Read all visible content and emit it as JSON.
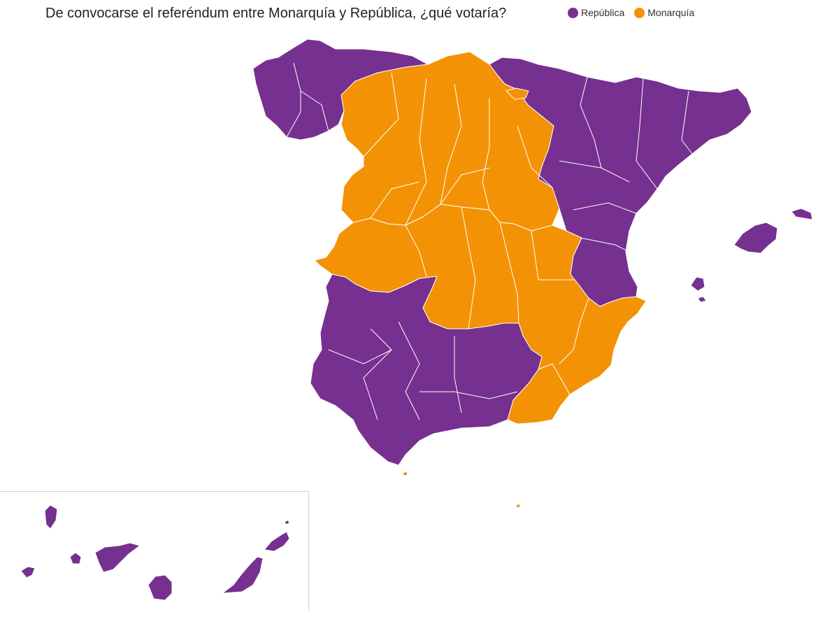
{
  "title": "De convocarse el referéndum entre Monarquía y República, ¿qué votaría?",
  "legend": [
    {
      "label": "República",
      "color": "#76308f"
    },
    {
      "label": "Monarquía",
      "color": "#f39204"
    }
  ],
  "colors": {
    "republica": "#76308f",
    "monarquia": "#f39204",
    "border": "#ffffff"
  }
}
